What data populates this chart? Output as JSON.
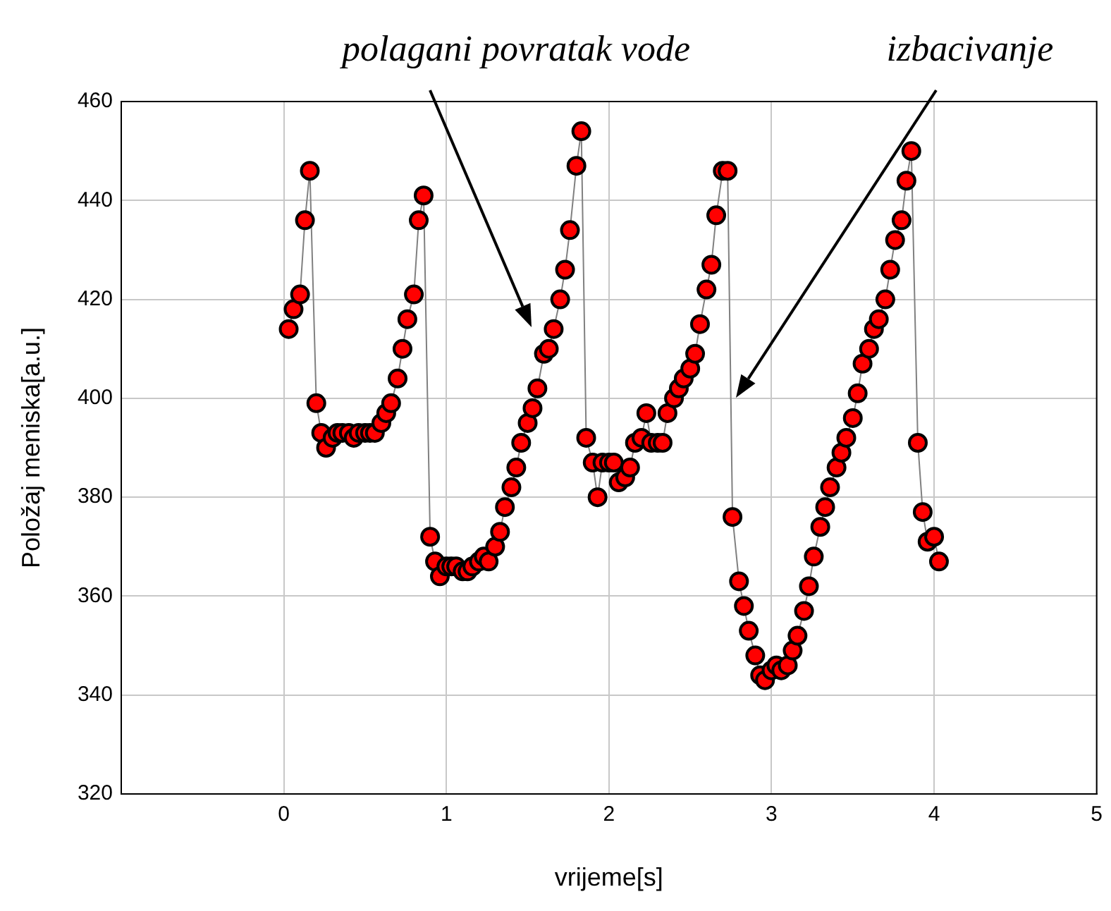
{
  "chart_data": {
    "type": "line",
    "xlabel": "vrijeme[s]",
    "ylabel": "Položaj meniska[a.u.]",
    "annotations": [
      "polagani povratak vode",
      "izbacivanje"
    ],
    "x": [
      0.03,
      0.06,
      0.1,
      0.13,
      0.16,
      0.2,
      0.23,
      0.26,
      0.3,
      0.33,
      0.36,
      0.4,
      0.43,
      0.46,
      0.5,
      0.53,
      0.56,
      0.6,
      0.63,
      0.66,
      0.7,
      0.73,
      0.76,
      0.8,
      0.83,
      0.86,
      0.9,
      0.93,
      0.96,
      1.0,
      1.03,
      1.06,
      1.1,
      1.13,
      1.16,
      1.2,
      1.23,
      1.26,
      1.3,
      1.33,
      1.36,
      1.4,
      1.43,
      1.46,
      1.5,
      1.53,
      1.56,
      1.6,
      1.63,
      1.66,
      1.7,
      1.73,
      1.76,
      1.8,
      1.83,
      1.86,
      1.9,
      1.93,
      1.96,
      2.0,
      2.03,
      2.06,
      2.1,
      2.13,
      2.16,
      2.2,
      2.23,
      2.26,
      2.3,
      2.33,
      2.36,
      2.4,
      2.43,
      2.46,
      2.5,
      2.53,
      2.56,
      2.6,
      2.63,
      2.66,
      2.7,
      2.73,
      2.76,
      2.8,
      2.83,
      2.86,
      2.9,
      2.93,
      2.96,
      3.0,
      3.03,
      3.06,
      3.1,
      3.13,
      3.16,
      3.2,
      3.23,
      3.26,
      3.3,
      3.33,
      3.36,
      3.4,
      3.43,
      3.46,
      3.5,
      3.53,
      3.56,
      3.6,
      3.63,
      3.66,
      3.7,
      3.73,
      3.76,
      3.8,
      3.83,
      3.86,
      3.9,
      3.93,
      3.96,
      4.0,
      4.03
    ],
    "series": [
      {
        "color": "#ff0000",
        "values": [
          414,
          418,
          421,
          436,
          446,
          399,
          393,
          390,
          392,
          393,
          393,
          393,
          392,
          393,
          393,
          393,
          393,
          395,
          397,
          399,
          404,
          410,
          416,
          421,
          436,
          441,
          372,
          367,
          364,
          366,
          366,
          366,
          365,
          365,
          366,
          367,
          368,
          367,
          370,
          373,
          378,
          382,
          386,
          391,
          395,
          398,
          402,
          409,
          410,
          414,
          420,
          426,
          434,
          447,
          454,
          392,
          387,
          380,
          387,
          387,
          387,
          383,
          384,
          386,
          391,
          392,
          397,
          391,
          391,
          391,
          397,
          400,
          402,
          404,
          406,
          409,
          415,
          422,
          427,
          437,
          446,
          446,
          376,
          363,
          358,
          353,
          348,
          344,
          343,
          345,
          346,
          345,
          346,
          349,
          352,
          357,
          362,
          368,
          374,
          378,
          382,
          386,
          389,
          392,
          396,
          401,
          407,
          410,
          414,
          416,
          420,
          426,
          432,
          436,
          444,
          450,
          391,
          377,
          371,
          372,
          367
        ]
      }
    ],
    "xlim": [
      -1,
      5
    ],
    "xticks": [
      0,
      1,
      2,
      3,
      4,
      5
    ],
    "ylim": [
      320,
      460
    ],
    "yticks": [
      320,
      340,
      360,
      380,
      400,
      420,
      440,
      460
    ],
    "grid": true,
    "legend": false,
    "marker": "circle",
    "line_style": "solid"
  }
}
